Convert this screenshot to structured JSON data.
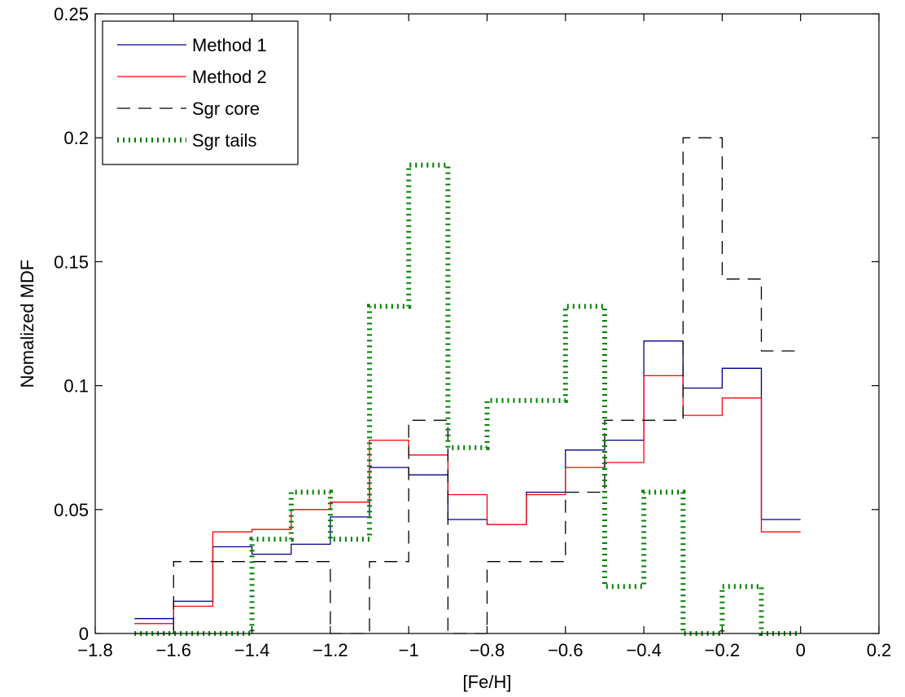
{
  "chart_data": {
    "type": "line",
    "title": "",
    "xlabel": "[Fe/H]",
    "ylabel": "Nomalized MDF",
    "xlim": [
      -1.8,
      0.2
    ],
    "ylim": [
      0,
      0.25
    ],
    "xticks": [
      -1.8,
      -1.6,
      -1.4,
      -1.2,
      -1,
      -0.8,
      -0.6,
      -0.4,
      -0.2,
      0,
      0.2
    ],
    "xtick_labels": [
      "−1.8",
      "−1.6",
      "−1.4",
      "−1.2",
      "−1",
      "−0.8",
      "−0.6",
      "−0.4",
      "−0.2",
      "0",
      "0.2"
    ],
    "yticks": [
      0,
      0.05,
      0.1,
      0.15,
      0.2,
      0.25
    ],
    "ytick_labels": [
      "0",
      "0.05",
      "0.1",
      "0.15",
      "0.2",
      "0.25"
    ],
    "grid": false,
    "legend_position": "top-left",
    "bin_edges": [
      -1.7,
      -1.6,
      -1.5,
      -1.4,
      -1.3,
      -1.2,
      -1.1,
      -1.0,
      -0.9,
      -0.8,
      -0.7,
      -0.6,
      -0.5,
      -0.4,
      -0.3,
      -0.2,
      -0.1,
      0.0
    ],
    "series": [
      {
        "name": "Method 1",
        "color": "#00008b",
        "style": "solid",
        "values": [
          0.006,
          0.013,
          0.035,
          0.032,
          0.036,
          0.047,
          0.067,
          0.064,
          0.046,
          0.044,
          0.057,
          0.074,
          0.078,
          0.118,
          0.099,
          0.107,
          0.046
        ]
      },
      {
        "name": "Method 2",
        "color": "#ff0000",
        "style": "solid",
        "values": [
          0.004,
          0.011,
          0.041,
          0.042,
          0.05,
          0.053,
          0.078,
          0.072,
          0.056,
          0.044,
          0.056,
          0.067,
          0.069,
          0.104,
          0.088,
          0.095,
          0.041
        ]
      },
      {
        "name": "Sgr core",
        "color": "#000000",
        "style": "dashed",
        "values": [
          0,
          0.029,
          0.029,
          0.029,
          0.029,
          0,
          0.029,
          0.086,
          0,
          0.029,
          0.029,
          0.057,
          0.086,
          0.086,
          0.2,
          0.143,
          0.114
        ]
      },
      {
        "name": "Sgr tails",
        "color": "#008000",
        "style": "dotted",
        "values": [
          0,
          0,
          0,
          0.038,
          0.057,
          0.038,
          0.132,
          0.189,
          0.075,
          0.094,
          0.094,
          0.132,
          0.019,
          0.057,
          0,
          0.019,
          0
        ]
      }
    ]
  }
}
